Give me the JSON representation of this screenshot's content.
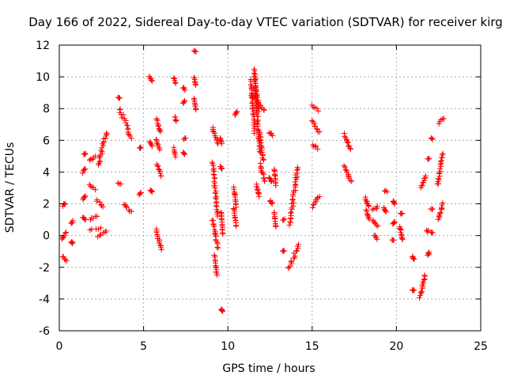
{
  "chart_data": {
    "type": "scatter",
    "title": "Day 166 of 2022, Sidereal Day-to-day VTEC variation (SDTVAR) for receiver kirg",
    "xlabel": "GPS time / hours",
    "ylabel": "SDTVAR / TECUs",
    "xlim": [
      0,
      25
    ],
    "ylim": [
      -6,
      12
    ],
    "xticks": [
      0,
      5,
      10,
      15,
      20,
      25
    ],
    "yticks": [
      -6,
      -4,
      -2,
      0,
      2,
      4,
      6,
      8,
      10,
      12
    ],
    "xtick_labels": [
      "0",
      "5",
      "10",
      "15",
      "20",
      "25"
    ],
    "ytick_labels": [
      "-6",
      "-4",
      "-2",
      "0",
      "2",
      "4",
      "6",
      "8",
      "10",
      "12"
    ],
    "grid": true,
    "marker": "+",
    "color": "#ff0000",
    "segments": [
      [
        0.2,
        0.35,
        1.9,
        2.0
      ],
      [
        0.15,
        0.4,
        -0.2,
        0.2
      ],
      [
        0.2,
        0.4,
        -1.3,
        -1.6
      ],
      [
        0.7,
        0.8,
        0.8,
        0.9
      ],
      [
        0.7,
        0.8,
        -0.4,
        -0.5
      ],
      [
        1.4,
        1.55,
        1.2,
        1.0
      ],
      [
        1.4,
        1.55,
        2.3,
        2.5
      ],
      [
        1.4,
        1.55,
        4.0,
        4.2
      ],
      [
        1.45,
        1.55,
        5.1,
        5.2
      ],
      [
        1.8,
        2.1,
        4.7,
        5.0
      ],
      [
        1.8,
        2.1,
        3.2,
        2.9
      ],
      [
        1.8,
        2.2,
        1.0,
        1.2
      ],
      [
        1.85,
        2.4,
        0.3,
        0.5
      ],
      [
        2.2,
        2.6,
        2.2,
        1.8
      ],
      [
        2.3,
        2.8,
        4.4,
        6.5
      ],
      [
        2.3,
        2.8,
        -0.1,
        0.3
      ],
      [
        3.5,
        3.65,
        3.3,
        3.3
      ],
      [
        3.5,
        3.6,
        8.7,
        8.7
      ],
      [
        3.6,
        4.25,
        8.0,
        6.1
      ],
      [
        3.8,
        4.3,
        2.0,
        1.5
      ],
      [
        4.75,
        4.85,
        2.6,
        2.7
      ],
      [
        4.75,
        4.85,
        5.5,
        5.6
      ],
      [
        5.35,
        5.5,
        10.0,
        9.8
      ],
      [
        5.35,
        5.5,
        5.9,
        5.7
      ],
      [
        5.4,
        5.5,
        2.9,
        2.8
      ],
      [
        5.75,
        6.0,
        7.4,
        6.5
      ],
      [
        5.75,
        5.95,
        6.1,
        5.4
      ],
      [
        5.8,
        6.05,
        4.5,
        3.7
      ],
      [
        5.75,
        6.05,
        0.4,
        -0.9
      ],
      [
        6.8,
        6.9,
        9.9,
        9.6
      ],
      [
        6.85,
        6.95,
        7.5,
        7.2
      ],
      [
        6.8,
        6.9,
        5.5,
        5.0
      ],
      [
        7.35,
        7.45,
        9.3,
        9.2
      ],
      [
        7.35,
        7.45,
        8.4,
        8.5
      ],
      [
        7.4,
        7.5,
        6.1,
        6.1
      ],
      [
        7.35,
        7.45,
        5.2,
        5.1
      ],
      [
        8.0,
        8.1,
        11.6,
        11.6
      ],
      [
        8.0,
        8.1,
        10.0,
        9.5
      ],
      [
        8.0,
        8.1,
        8.6,
        7.9
      ],
      [
        9.1,
        9.4,
        6.8,
        5.8
      ],
      [
        9.1,
        9.4,
        4.6,
        1.2
      ],
      [
        9.1,
        9.4,
        1.0,
        -0.8
      ],
      [
        9.2,
        9.35,
        -1.2,
        -2.5
      ],
      [
        9.55,
        9.65,
        6.2,
        5.8
      ],
      [
        9.55,
        9.65,
        4.4,
        4.2
      ],
      [
        9.6,
        9.7,
        1.5,
        0.1
      ],
      [
        9.6,
        9.7,
        -4.6,
        -4.8
      ],
      [
        10.35,
        10.5,
        3.0,
        1.8
      ],
      [
        10.4,
        10.55,
        7.6,
        7.8
      ],
      [
        10.35,
        10.5,
        1.7,
        0.6
      ],
      [
        11.35,
        11.6,
        9.8,
        6.5
      ],
      [
        11.4,
        11.65,
        8.8,
        8.6
      ],
      [
        11.55,
        11.85,
        10.5,
        7.9
      ],
      [
        11.6,
        11.9,
        9.8,
        5.2
      ],
      [
        11.8,
        12.2,
        8.3,
        7.9
      ],
      [
        11.9,
        12.1,
        6.5,
        4.7
      ],
      [
        11.9,
        12.2,
        4.5,
        3.4
      ],
      [
        11.7,
        11.85,
        3.2,
        2.5
      ],
      [
        12.45,
        12.65,
        6.5,
        6.3
      ],
      [
        12.45,
        12.6,
        3.6,
        3.4
      ],
      [
        12.5,
        12.65,
        2.2,
        2.0
      ],
      [
        12.75,
        12.85,
        4.2,
        3.2
      ],
      [
        12.75,
        12.85,
        1.5,
        0.5
      ],
      [
        13.25,
        13.35,
        1.0,
        1.0
      ],
      [
        13.25,
        13.35,
        -1.0,
        -1.0
      ],
      [
        13.65,
        14.15,
        0.7,
        4.3
      ],
      [
        13.6,
        14.2,
        -2.1,
        -0.6
      ],
      [
        15.0,
        15.4,
        8.2,
        7.9
      ],
      [
        15.0,
        15.4,
        7.2,
        6.5
      ],
      [
        15.05,
        15.3,
        5.7,
        5.5
      ],
      [
        15.0,
        15.4,
        1.8,
        2.5
      ],
      [
        16.9,
        17.3,
        6.4,
        5.4
      ],
      [
        16.9,
        17.3,
        4.4,
        3.4
      ],
      [
        18.15,
        18.35,
        2.4,
        1.8
      ],
      [
        18.2,
        18.4,
        1.6,
        1.0
      ],
      [
        18.6,
        18.9,
        1.0,
        0.6
      ],
      [
        18.6,
        18.9,
        1.6,
        1.8
      ],
      [
        18.7,
        18.85,
        0.0,
        -0.2
      ],
      [
        19.3,
        19.45,
        2.8,
        2.8
      ],
      [
        19.25,
        19.4,
        1.7,
        1.5
      ],
      [
        19.8,
        19.9,
        2.2,
        2.0
      ],
      [
        19.8,
        19.9,
        0.7,
        0.9
      ],
      [
        19.75,
        19.85,
        -0.3,
        -0.3
      ],
      [
        20.25,
        20.35,
        1.4,
        1.4
      ],
      [
        20.2,
        20.35,
        0.6,
        -0.3
      ],
      [
        20.95,
        21.05,
        -1.3,
        -1.5
      ],
      [
        20.95,
        21.05,
        -3.4,
        -3.5
      ],
      [
        21.4,
        21.7,
        -3.9,
        -2.5
      ],
      [
        21.45,
        21.75,
        3.0,
        3.8
      ],
      [
        21.8,
        21.9,
        0.3,
        0.3
      ],
      [
        21.85,
        21.95,
        4.8,
        4.8
      ],
      [
        21.85,
        21.95,
        -1.2,
        -1.1
      ],
      [
        22.05,
        22.15,
        6.1,
        6.1
      ],
      [
        22.05,
        22.15,
        1.7,
        1.7
      ],
      [
        22.05,
        22.15,
        0.2,
        0.2
      ],
      [
        22.45,
        22.75,
        3.2,
        5.2
      ],
      [
        22.5,
        22.75,
        1.0,
        2.0
      ],
      [
        22.5,
        22.8,
        7.1,
        7.4
      ]
    ]
  }
}
